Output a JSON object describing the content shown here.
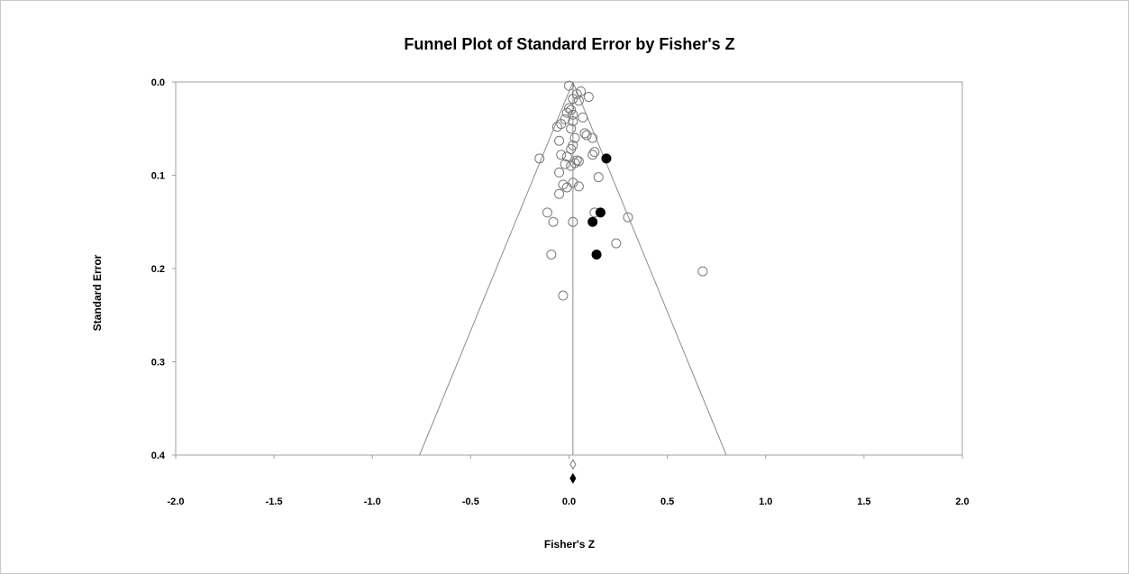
{
  "chart_data": {
    "type": "scatter",
    "title": "Funnel Plot of Standard Error by Fisher's Z",
    "xlabel": "Fisher's Z",
    "ylabel": "Standard Error",
    "xlim": [
      -2.0,
      2.0
    ],
    "ylim": [
      0.0,
      0.4
    ],
    "y_inverted": true,
    "x_ticks": [
      "-2.0",
      "-1.5",
      "-1.0",
      "-0.5",
      "0.0",
      "0.5",
      "1.0",
      "1.5",
      "2.0"
    ],
    "y_ticks": [
      "0.0",
      "0.1",
      "0.2",
      "0.3",
      "0.4"
    ],
    "x_tick_values": [
      -2.0,
      -1.5,
      -1.0,
      -0.5,
      0.0,
      0.5,
      1.0,
      1.5,
      2.0
    ],
    "y_tick_values": [
      0.0,
      0.1,
      0.2,
      0.3,
      0.4
    ],
    "grid": false,
    "funnel_center": 0.02,
    "funnel_base": {
      "se": 0.4,
      "left": -0.76,
      "right": 0.8
    },
    "series": [
      {
        "marker": "open-circle",
        "points": [
          [
            0.0,
            0.004
          ],
          [
            0.06,
            0.01
          ],
          [
            0.04,
            0.013
          ],
          [
            0.1,
            0.016
          ],
          [
            0.02,
            0.018
          ],
          [
            0.05,
            0.02
          ],
          [
            0.0,
            0.028
          ],
          [
            0.01,
            0.03
          ],
          [
            -0.01,
            0.033
          ],
          [
            0.02,
            0.035
          ],
          [
            0.07,
            0.038
          ],
          [
            -0.02,
            0.04
          ],
          [
            0.02,
            0.042
          ],
          [
            -0.04,
            0.045
          ],
          [
            0.01,
            0.05
          ],
          [
            -0.06,
            0.048
          ],
          [
            0.08,
            0.055
          ],
          [
            0.09,
            0.057
          ],
          [
            0.03,
            0.06
          ],
          [
            0.12,
            0.06
          ],
          [
            -0.05,
            0.063
          ],
          [
            0.02,
            0.068
          ],
          [
            0.01,
            0.072
          ],
          [
            0.13,
            0.075
          ],
          [
            0.12,
            0.078
          ],
          [
            -0.04,
            0.078
          ],
          [
            -0.01,
            0.08
          ],
          [
            -0.15,
            0.082
          ],
          [
            0.04,
            0.084
          ],
          [
            0.05,
            0.085
          ],
          [
            -0.02,
            0.088
          ],
          [
            0.03,
            0.087
          ],
          [
            0.01,
            0.09
          ],
          [
            -0.05,
            0.097
          ],
          [
            0.15,
            0.102
          ],
          [
            0.02,
            0.108
          ],
          [
            -0.03,
            0.11
          ],
          [
            0.05,
            0.112
          ],
          [
            -0.01,
            0.113
          ],
          [
            -0.05,
            0.12
          ],
          [
            -0.11,
            0.14
          ],
          [
            0.13,
            0.14
          ],
          [
            0.3,
            0.145
          ],
          [
            -0.08,
            0.15
          ],
          [
            0.02,
            0.15
          ],
          [
            0.24,
            0.173
          ],
          [
            -0.09,
            0.185
          ],
          [
            0.68,
            0.203
          ],
          [
            -0.03,
            0.229
          ]
        ]
      },
      {
        "marker": "filled-circle",
        "points": [
          [
            0.19,
            0.082
          ],
          [
            0.16,
            0.14
          ],
          [
            0.12,
            0.15
          ],
          [
            0.14,
            0.185
          ]
        ]
      }
    ],
    "summary_markers": [
      {
        "marker": "open-diamond",
        "x": 0.02,
        "y": 0.41
      },
      {
        "marker": "filled-diamond",
        "x": 0.02,
        "y": 0.425
      }
    ]
  }
}
